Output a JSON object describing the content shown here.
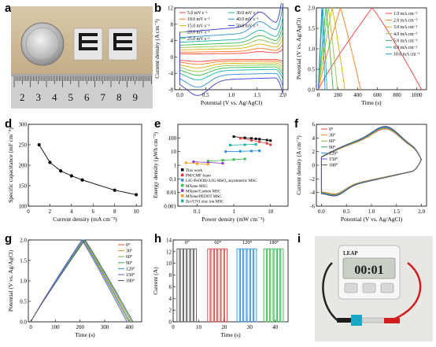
{
  "panels": {
    "a": "a",
    "b": "b",
    "c": "c",
    "d": "d",
    "e": "e",
    "f": "f",
    "g": "g",
    "h": "h",
    "i": "i"
  },
  "photo_a": {
    "ruler_numbers": [
      "2",
      "3",
      "4",
      "5",
      "6",
      "7",
      "8",
      "9"
    ],
    "coin_text": ""
  },
  "photo_i": {
    "timer_brand": "LEAP",
    "timer_display": "00:01",
    "timer_buttons": [
      "",
      "",
      ""
    ]
  },
  "watermark": "",
  "colors": {
    "rainbow": [
      "#ff3b3b",
      "#ff7a1a",
      "#d6b000",
      "#8cc63f",
      "#2fbf4a",
      "#18b3a6",
      "#2a8ee0",
      "#3b3bd6",
      "#8a3bd6",
      "#444444"
    ],
    "f_series": [
      "#e8463a",
      "#ee8a2a",
      "#7cbf3a",
      "#28a95a",
      "#2a8ee0",
      "#6b4bd6",
      "#555555"
    ]
  },
  "chart_data": [
    {
      "panel": "b",
      "type": "line",
      "xlabel": "Potential (V vs. Ag/AgCl)",
      "ylabel": "Current density (A cm⁻³)",
      "xlim": [
        -0.1,
        2.1
      ],
      "ylim": [
        -8,
        12
      ],
      "xticks": [
        0.0,
        0.5,
        1.0,
        1.5,
        2.0
      ],
      "yticks": [
        -8,
        -4,
        0,
        4,
        8,
        12
      ],
      "xtick_labels": [
        "0.0",
        "0.5",
        "1.0",
        "1.5",
        "2.0"
      ],
      "ytick_labels": [
        "-8",
        "-4",
        "0",
        "4",
        "8",
        "12"
      ],
      "series": [
        {
          "name": "5.0 mV s⁻¹",
          "scale": 0.5
        },
        {
          "name": "10.0 mV s⁻¹",
          "scale": 0.8
        },
        {
          "name": "15.0 mV s⁻¹",
          "scale": 1.2
        },
        {
          "name": "20.0 mV s⁻¹",
          "scale": 1.6
        },
        {
          "name": "25.0 mV s⁻¹",
          "scale": 2.0
        },
        {
          "name": "30.0 mV s⁻¹",
          "scale": 2.5
        },
        {
          "name": "40.0 mV s⁻¹",
          "scale": 3.3
        },
        {
          "name": "50.0 mV s⁻¹",
          "scale": 4.2
        }
      ]
    },
    {
      "panel": "c",
      "type": "line",
      "xlabel": "Time (s)",
      "ylabel": "Potential (V vs. Ag/AgCl)",
      "xlim": [
        -20,
        1100
      ],
      "ylim": [
        0,
        2.0
      ],
      "xticks": [
        0,
        200,
        400,
        600,
        800,
        1000
      ],
      "yticks": [
        0.0,
        0.5,
        1.0,
        1.5,
        2.0
      ],
      "xtick_labels": [
        "0",
        "200",
        "400",
        "600",
        "800",
        "1000"
      ],
      "ytick_labels": [
        "0.0",
        "0.5",
        "1.0",
        "1.5",
        "2.0"
      ],
      "series": [
        {
          "name": "1.0 mA cm⁻²",
          "period": 1050
        },
        {
          "name": "2.0 mA cm⁻²",
          "period": 430
        },
        {
          "name": "3.0 mA cm⁻²",
          "period": 270
        },
        {
          "name": "4.0 mA cm⁻²",
          "period": 195
        },
        {
          "name": "5.0 mA cm⁻²",
          "period": 150
        },
        {
          "name": "8.0 mA cm⁻²",
          "period": 88
        },
        {
          "name": "10.0 mA cm⁻²",
          "period": 68
        }
      ]
    },
    {
      "panel": "d",
      "type": "line",
      "xlabel": "Current density (mA cm⁻²)",
      "ylabel": "Specific capacitance (mF cm⁻²)",
      "xlim": [
        0,
        10.5
      ],
      "ylim": [
        100,
        300
      ],
      "xticks": [
        0,
        2,
        4,
        6,
        8,
        10
      ],
      "yticks": [
        100,
        150,
        200,
        250,
        300
      ],
      "xtick_labels": [
        "0",
        "2",
        "4",
        "6",
        "8",
        "10"
      ],
      "ytick_labels": [
        "100",
        "150",
        "200",
        "250",
        "300"
      ],
      "x": [
        1,
        2,
        3,
        4,
        5,
        8,
        10
      ],
      "values": [
        250,
        207,
        186,
        174,
        164,
        139,
        128
      ]
    },
    {
      "panel": "e",
      "type": "scatter",
      "xlabel": "Power density (mW cm⁻²)",
      "ylabel": "Energy density (μWh cm⁻²)",
      "xscale": "log",
      "yscale": "log",
      "xlim": [
        0.03,
        30
      ],
      "ylim": [
        0.001,
        1000
      ],
      "xticks": [
        0.1,
        1,
        10
      ],
      "yticks": [
        0.001,
        0.01,
        0.1,
        1,
        10,
        100
      ],
      "xtick_labels": [
        "0.1",
        "1",
        "10"
      ],
      "ytick_labels": [
        "0.001",
        "0.01",
        "0.1",
        "1",
        "10",
        "100"
      ],
      "series": [
        {
          "name": "This work",
          "color": "#000000",
          "x": [
            1.0,
            2.0,
            3.0,
            4.0,
            5.0,
            8.0,
            10.0
          ],
          "y": [
            125,
            103,
            93,
            87,
            82,
            70,
            64
          ]
        },
        {
          "name": "PM/CMF foam",
          "color": "#e33b3b",
          "x": [
            1.5,
            3.0,
            5.0,
            8.0,
            10.0
          ],
          "y": [
            95,
            68,
            52,
            40,
            32
          ]
        },
        {
          "name": "LIG-FeOOH//LIG-MnO₂ asymmetric MSC",
          "color": "#2a8ee0",
          "x": [
            0.6,
            1.5,
            3.0,
            5.0
          ],
          "y": [
            10,
            10.5,
            11,
            11.5
          ]
        },
        {
          "name": "MXene MSC",
          "color": "#2fbf4a",
          "x": [
            0.2,
            0.5,
            1.0,
            2.0
          ],
          "y": [
            2.0,
            2.3,
            2.6,
            2.9
          ]
        },
        {
          "name": "MXene/Carbon MSC",
          "color": "#8a3bd6",
          "x": [
            0.08,
            0.2,
            0.5
          ],
          "y": [
            1.8,
            1.6,
            1.4
          ]
        },
        {
          "name": "MXene/PEDOT MSC",
          "color": "#ff9f1a",
          "x": [
            0.05,
            0.1,
            0.2
          ],
          "y": [
            1.5,
            1.3,
            1.2
          ]
        },
        {
          "name": "Zn//CN1 zinc ion MSC",
          "color": "#18b3a6",
          "x": [
            0.8,
            2.0,
            4.0
          ],
          "y": [
            30,
            32,
            34
          ]
        }
      ]
    },
    {
      "panel": "f",
      "type": "line",
      "xlabel": "Potential (V vs. Ag/AgCl)",
      "ylabel": "Current density (A cm⁻³)",
      "xlim": [
        -0.1,
        2.1
      ],
      "ylim": [
        -6,
        6
      ],
      "xticks": [
        0.0,
        0.5,
        1.0,
        1.5,
        2.0
      ],
      "yticks": [
        -6,
        -4,
        -2,
        0,
        2,
        4,
        6
      ],
      "xtick_labels": [
        "0.0",
        "0.5",
        "1.0",
        "1.5",
        "2.0"
      ],
      "ytick_labels": [
        "-6",
        "-4",
        "-2",
        "0",
        "2",
        "4",
        "6"
      ],
      "series": [
        {
          "name": "0°"
        },
        {
          "name": "30°"
        },
        {
          "name": "60°"
        },
        {
          "name": "90°"
        },
        {
          "name": "120°"
        },
        {
          "name": "150°"
        },
        {
          "name": "180°"
        }
      ]
    },
    {
      "panel": "g",
      "type": "line",
      "xlabel": "Time (s)",
      "ylabel": "Potential (V vs. Ag/AgCl)",
      "xlim": [
        -10,
        450
      ],
      "ylim": [
        0,
        2.0
      ],
      "xticks": [
        0,
        100,
        200,
        300,
        400
      ],
      "yticks": [
        0.0,
        0.5,
        1.0,
        1.5,
        2.0
      ],
      "xtick_labels": [
        "0",
        "100",
        "200",
        "300",
        "400"
      ],
      "ytick_labels": [
        "0.0",
        "0.5",
        "1.0",
        "1.5",
        "2.0"
      ],
      "series": [
        {
          "name": "0°",
          "period": 400
        },
        {
          "name": "30°",
          "period": 405
        },
        {
          "name": "60°",
          "period": 395
        },
        {
          "name": "90°",
          "period": 410
        },
        {
          "name": "120°",
          "period": 400
        },
        {
          "name": "150°",
          "period": 390
        },
        {
          "name": "180°",
          "period": 415
        }
      ]
    },
    {
      "panel": "h",
      "type": "line",
      "xlabel": "Time (s)",
      "ylabel": "Current (A)",
      "xlim": [
        0,
        45
      ],
      "ylim": [
        0,
        14
      ],
      "xticks": [
        0,
        10,
        20,
        30,
        40
      ],
      "yticks": [
        0,
        2,
        4,
        6,
        8,
        10,
        12,
        14
      ],
      "xtick_labels": [
        "0",
        "10",
        "20",
        "30",
        "40"
      ],
      "ytick_labels": [
        "0",
        "2",
        "4",
        "6",
        "8",
        "10",
        "12",
        "14"
      ],
      "annotations": [
        "0°",
        "60°",
        "120°",
        "180°"
      ],
      "groups": [
        {
          "label": "0°",
          "color": "#555555",
          "start": 1.5,
          "end": 9.5
        },
        {
          "label": "60°",
          "color": "#e33b3b",
          "start": 13.5,
          "end": 21.5
        },
        {
          "label": "120°",
          "color": "#2a8ee0",
          "start": 25.0,
          "end": 33.0
        },
        {
          "label": "180°",
          "color": "#2fbf4a",
          "start": 35.5,
          "end": 43.5
        }
      ],
      "pulse_value": 12.5
    }
  ]
}
